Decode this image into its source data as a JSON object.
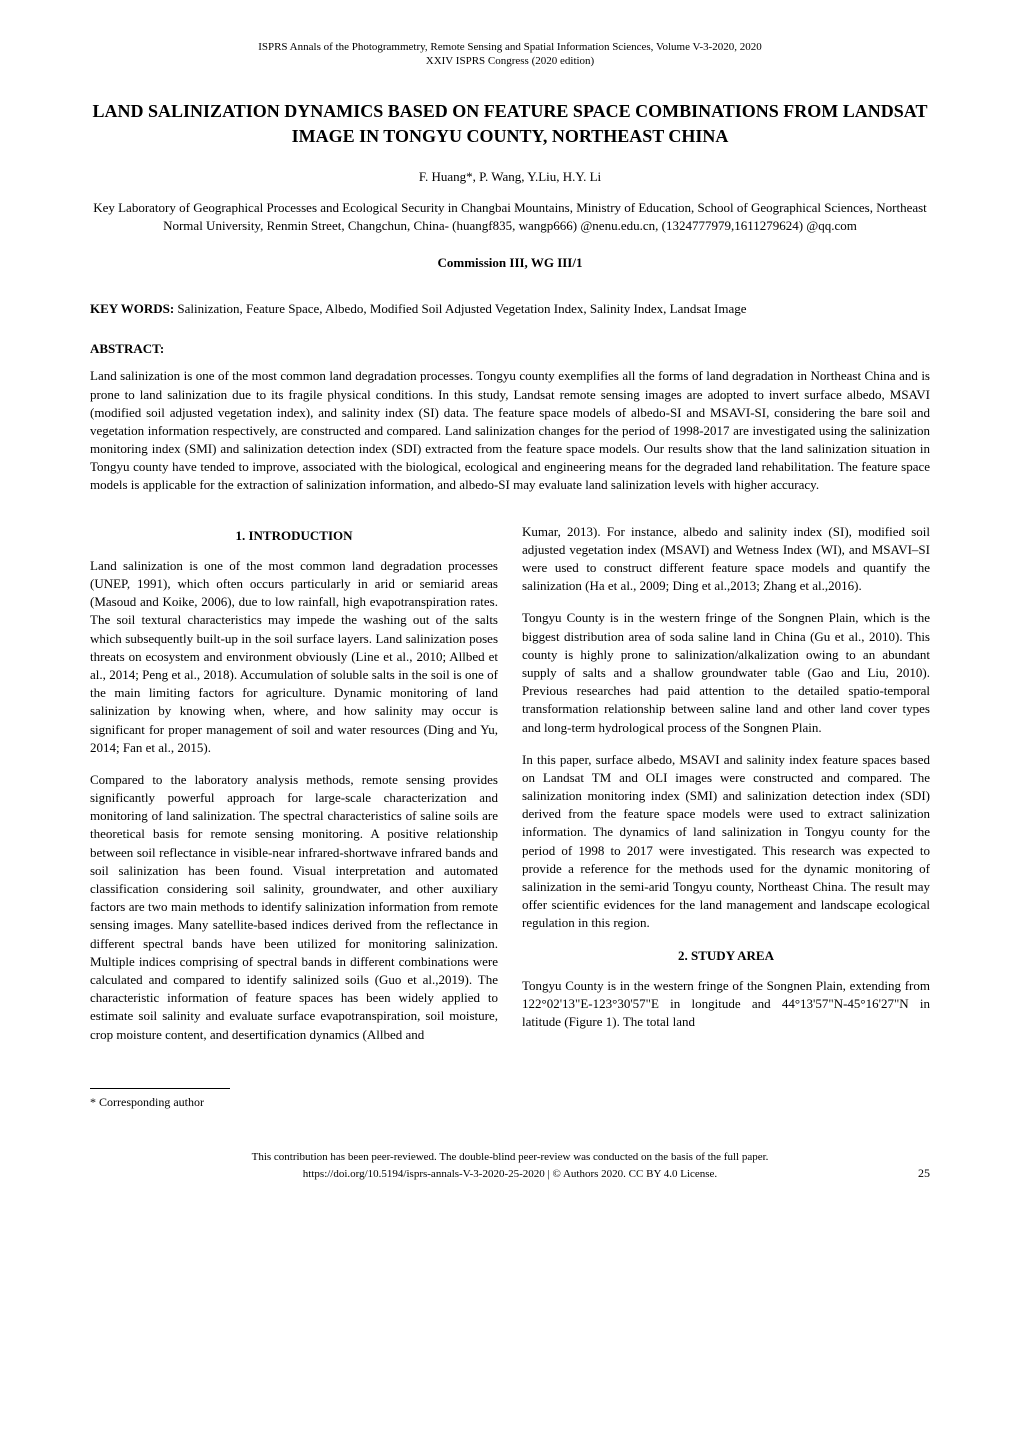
{
  "header": {
    "line1": "ISPRS Annals of the Photogrammetry, Remote Sensing and Spatial Information Sciences, Volume V-3-2020, 2020",
    "line2": "XXIV ISPRS Congress (2020 edition)"
  },
  "title": "LAND SALINIZATION DYNAMICS BASED ON FEATURE SPACE COMBINATIONS FROM LANDSAT IMAGE IN TONGYU COUNTY, NORTHEAST CHINA",
  "authors": "F. Huang*, P. Wang, Y.Liu, H.Y. Li",
  "affiliation": "Key Laboratory of Geographical Processes and Ecological Security in Changbai Mountains, Ministry of Education, School of Geographical Sciences, Northeast Normal University, Renmin Street, Changchun, China- (huangf835, wangp666) @nenu.edu.cn, (1324777979,1611279624) @qq.com",
  "commission": "Commission III, WG III/1",
  "keywords_label": "KEY WORDS:",
  "keywords_text": " Salinization, Feature Space, Albedo, Modified Soil Adjusted Vegetation Index, Salinity Index, Landsat Image",
  "abstract_label": "ABSTRACT:",
  "abstract_text": "Land salinization is one of the most common land degradation processes. Tongyu county exemplifies all the forms of land degradation in Northeast China and is prone to land salinization due to its fragile physical conditions. In this study, Landsat remote sensing images are adopted to invert surface albedo, MSAVI (modified soil adjusted vegetation index), and salinity index (SI) data. The feature space models of albedo-SI and MSAVI-SI, considering the bare soil and vegetation information respectively, are constructed and compared. Land salinization changes for the period of 1998-2017 are investigated using the salinization monitoring index (SMI) and salinization detection index (SDI) extracted from the feature space models. Our results show that the land salinization situation in Tongyu county have tended to improve, associated with the biological, ecological and engineering means for the degraded land rehabilitation. The feature space models is applicable for the extraction of salinization information, and albedo-SI may evaluate land salinization levels with higher accuracy.",
  "sections": {
    "intro_heading": "1.  INTRODUCTION",
    "study_area_heading": "2.  STUDY AREA"
  },
  "left_column": {
    "p1": "Land salinization is one of the most common land degradation processes (UNEP, 1991), which often occurs particularly in arid or semiarid areas (Masoud and Koike, 2006), due to low rainfall, high evapotranspiration rates. The soil textural characteristics may impede the washing out of the salts which subsequently built-up in the soil surface layers. Land salinization poses threats on ecosystem and environment obviously (Line et al., 2010; Allbed et al., 2014; Peng et al., 2018). Accumulation of soluble salts in the soil is one of the main limiting factors for agriculture. Dynamic monitoring of land salinization by knowing when, where, and how salinity may occur is significant for proper management of soil and water resources (Ding and Yu, 2014; Fan et al., 2015).",
    "p2": "Compared to the laboratory analysis methods, remote sensing provides significantly powerful approach for large-scale characterization and monitoring of land salinization. The spectral characteristics of saline soils are theoretical basis for remote sensing monitoring. A positive relationship between soil reflectance in visible-near infrared-shortwave infrared bands and soil salinization has been found. Visual interpretation and automated classification considering soil salinity, groundwater, and other auxiliary factors are two main methods to identify salinization information from remote sensing images. Many satellite-based indices derived from the reflectance in different spectral bands have been utilized for monitoring salinization. Multiple indices comprising of spectral bands in different combinations were calculated and compared to identify salinized soils (Guo et al.,2019). The characteristic information of feature spaces has been widely applied to estimate soil salinity and evaluate surface evapotranspiration, soil moisture, crop moisture content, and desertification dynamics (Allbed and"
  },
  "right_column": {
    "p1": "Kumar, 2013). For instance, albedo and salinity index (SI), modified soil adjusted vegetation index (MSAVI) and Wetness Index (WI), and MSAVI–SI were used to construct different feature space models and quantify the salinization (Ha et al., 2009; Ding et al.,2013; Zhang et al.,2016).",
    "p2": "Tongyu County is in the western fringe of the Songnen Plain, which is the biggest distribution area of soda saline land in China (Gu et al., 2010). This county is highly prone to salinization/alkalization owing to an abundant supply of salts and a shallow groundwater table (Gao and Liu, 2010). Previous researches had paid attention to the detailed spatio-temporal transformation relationship between saline land and other land cover types and long-term hydrological process of the Songnen Plain.",
    "p3": "In this paper, surface albedo, MSAVI and salinity index feature spaces based on Landsat TM and OLI images were constructed and compared. The salinization monitoring index (SMI) and salinization detection index (SDI) derived from the feature space models were used to extract salinization information. The dynamics of land salinization in Tongyu county for the period of 1998 to 2017 were investigated. This research was expected to provide a reference for the methods used for the dynamic monitoring of salinization in the semi-arid Tongyu county, Northeast China. The result may offer scientific evidences for the land management and landscape ecological regulation in this region.",
    "p4": "Tongyu County is in the western fringe of the Songnen Plain, extending from 122°02'13\"E-123°30'57\"E in longitude and 44°13'57\"N-45°16'27\"N in latitude (Figure 1). The total land"
  },
  "footnote": "*   Corresponding author",
  "footer": {
    "line1": "This contribution has been peer-reviewed. The double-blind peer-review was conducted on the basis of the full paper.",
    "line2": "https://doi.org/10.5194/isprs-annals-V-3-2020-25-2020 | © Authors 2020. CC BY 4.0 License.",
    "page": "25"
  }
}
